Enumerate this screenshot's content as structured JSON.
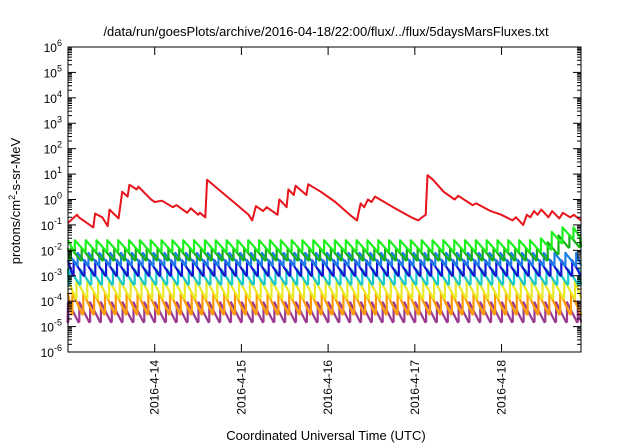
{
  "chart_data": {
    "type": "line",
    "title": "/data/run/goesPlots/archive/2016-04-18/22:00/flux/../flux/5daysMarsFluxes.txt",
    "xlabel": "Coordinated Universal Time (UTC)",
    "ylabel": "protons/cm²-s-sr-MeV",
    "ylabel_parts": {
      "pre": "protons/cm",
      "sup": "2",
      "post": "-s-sr-MeV"
    },
    "x_range": [
      "2016-04-13T00:00",
      "2016-04-18T22:00"
    ],
    "x_ticks": [
      {
        "label": "2016-4-14",
        "at": "2016-04-14T00:00"
      },
      {
        "label": "2016-4-15",
        "at": "2016-04-15T00:00"
      },
      {
        "label": "2016-4-16",
        "at": "2016-04-16T00:00"
      },
      {
        "label": "2016-4-17",
        "at": "2016-04-17T00:00"
      },
      {
        "label": "2016-4-18",
        "at": "2016-04-18T00:00"
      }
    ],
    "y_scale": "log",
    "y_range": [
      1e-06,
      1000000.0
    ],
    "y_ticks": [
      {
        "base": "10",
        "exp": "-6"
      },
      {
        "base": "10",
        "exp": "-5"
      },
      {
        "base": "10",
        "exp": "-4"
      },
      {
        "base": "10",
        "exp": "-3"
      },
      {
        "base": "10",
        "exp": "-2"
      },
      {
        "base": "10",
        "exp": "-1"
      },
      {
        "base": "10",
        "exp": "0"
      },
      {
        "base": "10",
        "exp": "1"
      },
      {
        "base": "10",
        "exp": "2"
      },
      {
        "base": "10",
        "exp": "3"
      },
      {
        "base": "10",
        "exp": "4"
      },
      {
        "base": "10",
        "exp": "5"
      },
      {
        "base": "10",
        "exp": "6"
      }
    ],
    "grid": false,
    "legend": "none",
    "series": [
      {
        "color": "#e8131b",
        "points": [
          [
            "2016-04-13T00:00",
            0.12
          ],
          [
            "2016-04-13T02:30",
            0.25
          ],
          [
            "2016-04-13T03:00",
            0.2
          ],
          [
            "2016-04-13T07:00",
            0.08
          ],
          [
            "2016-04-13T07:30",
            0.28
          ],
          [
            "2016-04-13T09:30",
            0.2
          ],
          [
            "2016-04-13T11:00",
            0.09
          ],
          [
            "2016-04-13T11:30",
            0.4
          ],
          [
            "2016-04-13T14:00",
            0.18
          ],
          [
            "2016-04-13T15:00",
            2.0
          ],
          [
            "2016-04-13T16:30",
            1.3
          ],
          [
            "2016-04-13T17:00",
            3.8
          ],
          [
            "2016-04-13T19:00",
            2.5
          ],
          [
            "2016-04-13T19:30",
            3.2
          ],
          [
            "2016-04-13T23:00",
            1.0
          ],
          [
            "2016-04-14T00:00",
            0.8
          ],
          [
            "2016-04-14T02:00",
            0.9
          ],
          [
            "2016-04-14T05:00",
            0.5
          ],
          [
            "2016-04-14T06:00",
            0.6
          ],
          [
            "2016-04-14T09:00",
            0.3
          ],
          [
            "2016-04-14T10:00",
            0.45
          ],
          [
            "2016-04-14T12:00",
            0.25
          ],
          [
            "2016-04-14T12:30",
            0.3
          ],
          [
            "2016-04-14T14:00",
            0.2
          ],
          [
            "2016-04-14T14:30",
            6.0
          ],
          [
            "2016-04-14T17:00",
            3.0
          ],
          [
            "2016-04-14T21:00",
            1.0
          ],
          [
            "2016-04-15T02:00",
            0.25
          ],
          [
            "2016-04-15T03:00",
            0.15
          ],
          [
            "2016-04-15T04:00",
            0.55
          ],
          [
            "2016-04-15T06:00",
            0.35
          ],
          [
            "2016-04-15T07:00",
            0.5
          ],
          [
            "2016-04-15T10:00",
            0.25
          ],
          [
            "2016-04-15T10:30",
            1.0
          ],
          [
            "2016-04-15T12:00",
            0.6
          ],
          [
            "2016-04-15T12:30",
            0.5
          ],
          [
            "2016-04-15T13:00",
            2.5
          ],
          [
            "2016-04-15T14:30",
            1.5
          ],
          [
            "2016-04-15T15:00",
            3.5
          ],
          [
            "2016-04-15T18:00",
            1.5
          ],
          [
            "2016-04-15T18:30",
            4.0
          ],
          [
            "2016-04-15T22:00",
            2.0
          ],
          [
            "2016-04-16T02:00",
            0.8
          ],
          [
            "2016-04-16T06:00",
            0.25
          ],
          [
            "2016-04-16T08:00",
            0.15
          ],
          [
            "2016-04-16T09:00",
            0.7
          ],
          [
            "2016-04-16T10:00",
            0.5
          ],
          [
            "2016-04-16T11:00",
            1.0
          ],
          [
            "2016-04-16T12:00",
            0.8
          ],
          [
            "2016-04-16T13:00",
            1.3
          ],
          [
            "2016-04-16T18:00",
            0.5
          ],
          [
            "2016-04-16T23:00",
            0.2
          ],
          [
            "2016-04-17T01:00",
            0.15
          ],
          [
            "2016-04-17T02:00",
            0.2
          ],
          [
            "2016-04-17T03:00",
            0.25
          ],
          [
            "2016-04-17T03:30",
            9.0
          ],
          [
            "2016-04-17T05:00",
            6.0
          ],
          [
            "2016-04-17T08:00",
            2.0
          ],
          [
            "2016-04-17T11:00",
            1.0
          ],
          [
            "2016-04-17T12:00",
            1.4
          ],
          [
            "2016-04-17T16:00",
            0.6
          ],
          [
            "2016-04-17T17:00",
            0.7
          ],
          [
            "2016-04-17T21:00",
            0.35
          ],
          [
            "2016-04-18T00:00",
            0.25
          ],
          [
            "2016-04-18T03:00",
            0.15
          ],
          [
            "2016-04-18T04:00",
            0.2
          ],
          [
            "2016-04-18T06:00",
            0.1
          ],
          [
            "2016-04-18T07:00",
            0.25
          ],
          [
            "2016-04-18T08:00",
            0.2
          ],
          [
            "2016-04-18T09:00",
            0.35
          ],
          [
            "2016-04-18T10:00",
            0.25
          ],
          [
            "2016-04-18T11:00",
            0.4
          ],
          [
            "2016-04-18T13:00",
            0.2
          ],
          [
            "2016-04-18T14:00",
            0.35
          ],
          [
            "2016-04-18T16:00",
            0.18
          ],
          [
            "2016-04-18T17:00",
            0.3
          ],
          [
            "2016-04-18T19:00",
            0.2
          ],
          [
            "2016-04-18T20:00",
            0.25
          ],
          [
            "2016-04-18T22:00",
            0.15
          ]
        ]
      },
      {
        "color": "#1cf01c",
        "sawtooth": {
          "period_hours": 3,
          "peak": 0.025,
          "trough": 0.009,
          "late_rise_from": "2016-04-18T10:00",
          "late_peak": 0.08
        }
      },
      {
        "color": "#15b015",
        "sawtooth": {
          "period_hours": 3,
          "peak": 0.012,
          "trough": 0.004,
          "late_rise_from": "2016-04-18T10:00",
          "late_peak": 0.04
        }
      },
      {
        "color": "#1a7fe6",
        "sawtooth": {
          "period_hours": 3,
          "peak": 0.008,
          "trough": 0.0025
        }
      },
      {
        "color": "#1414d2",
        "sawtooth": {
          "period_hours": 3,
          "peak": 0.004,
          "trough": 0.001
        }
      },
      {
        "color": "#17c9c9",
        "sawtooth": {
          "period_hours": 3,
          "peak": 0.0018,
          "trough": 0.00045
        }
      },
      {
        "color": "#eaea24",
        "sawtooth": {
          "period_hours": 3,
          "peak": 0.0007,
          "trough": 0.00013
        }
      },
      {
        "color": "#ff9a00",
        "sawtooth": {
          "period_hours": 3,
          "peak": 0.00022,
          "trough": 3e-05
        }
      },
      {
        "color": "#9b3a8f",
        "sawtooth": {
          "period_hours": 3,
          "peak": 9e-05,
          "trough": 1.5e-05
        }
      }
    ]
  }
}
